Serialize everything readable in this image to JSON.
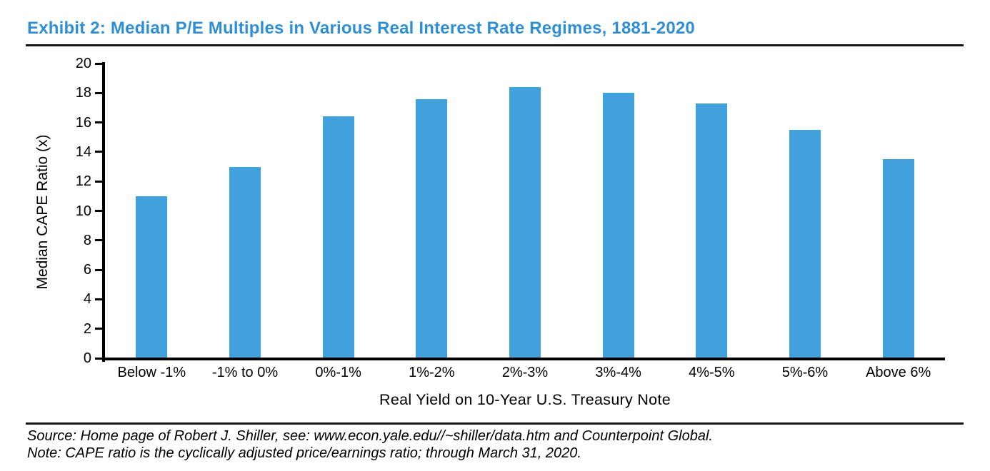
{
  "page": {
    "source_line": "Source: Home page of Robert J. Shiller, see: www.econ.yale.edu//~shiller/data.htm and Counterpoint Global.",
    "note_line": "Note: CAPE ratio is the cyclically adjusted price/earnings ratio; through March 31, 2020.",
    "title_color": "#2f8fd6",
    "bar_color": "#41a1dc",
    "axis_color": "#000000"
  },
  "chart_data": {
    "type": "bar",
    "title": "Exhibit 2: Median P/E Multiples in Various Real Interest Rate Regimes, 1881-2020",
    "categories": [
      "Below -1%",
      "-1% to 0%",
      "0%-1%",
      "1%-2%",
      "2%-3%",
      "3%-4%",
      "4%-5%",
      "5%-6%",
      "Above 6%"
    ],
    "values": [
      11.0,
      13.0,
      16.4,
      17.6,
      18.4,
      18.0,
      17.3,
      15.5,
      13.5
    ],
    "xlabel": "Real Yield on 10-Year U.S. Treasury Note",
    "ylabel": "Median CAPE Ratio (x)",
    "ylim": [
      0,
      20
    ],
    "ytick_step": 2,
    "grid": false,
    "legend": null,
    "bar_color": "#41a1dc"
  }
}
